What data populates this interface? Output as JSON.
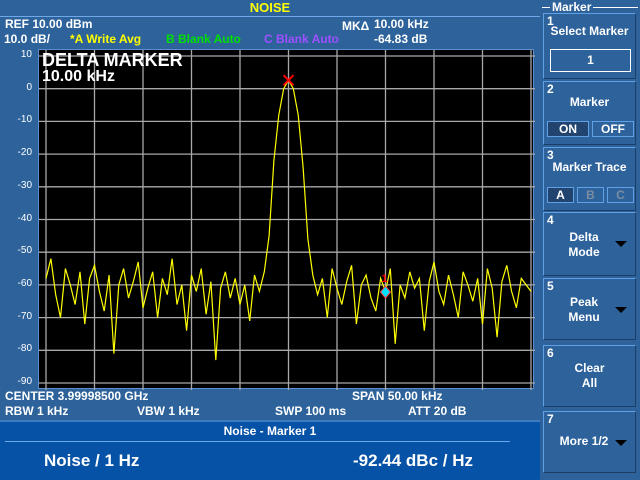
{
  "title": "NOISE",
  "header": {
    "ref": "REF  10.00 dBm",
    "scale": "10.0 dB/",
    "trace_a": "*A Write Avg",
    "trace_b": "B Blank Auto",
    "trace_c": "C Blank Auto",
    "mk_label": "MKΔ",
    "mk_freq": "10.00 kHz",
    "mk_level": "-64.83 dB"
  },
  "colors": {
    "trace_a": "#ffff00",
    "trace_b": "#00e000",
    "trace_c": "#a050ff",
    "marker": "#ff0000",
    "delta_marker": "#00e0ff"
  },
  "overlay": {
    "line1": "DELTA MARKER",
    "line2": "10.00 kHz"
  },
  "footer": {
    "center": "CENTER 3.99998500 GHz",
    "span": "SPAN  50.00 kHz",
    "rbw": "RBW  1 kHz",
    "vbw": "VBW  1 kHz",
    "swp": "SWP  100 ms",
    "att": "ATT  20 dB"
  },
  "result": {
    "title": "Noise - Marker 1",
    "label": "Noise / 1 Hz",
    "value": "-92.44 dBc / Hz"
  },
  "softkeys": {
    "menu": "Marker",
    "k1": {
      "num": "1",
      "label": "Select Marker",
      "value": "1"
    },
    "k2": {
      "num": "2",
      "label": "Marker",
      "on": "ON",
      "off": "OFF",
      "selected": "ON"
    },
    "k3": {
      "num": "3",
      "label": "Marker Trace",
      "a": "A",
      "b": "B",
      "c": "C",
      "selected": "A"
    },
    "k4": {
      "num": "4",
      "line1": "Delta",
      "line2": "Mode"
    },
    "k5": {
      "num": "5",
      "line1": "Peak",
      "line2": "Menu"
    },
    "k6": {
      "num": "6",
      "line1": "Clear",
      "line2": "All"
    },
    "k7": {
      "num": "7",
      "label": "More 1/2"
    }
  },
  "chart_data": {
    "type": "line",
    "x_unit": "kHz offset from center",
    "x_range": [
      -25,
      25
    ],
    "ylim": [
      -90,
      10
    ],
    "yticks": [
      10,
      0,
      -10,
      -20,
      -30,
      -40,
      -50,
      -60,
      -70,
      -80,
      -90
    ],
    "grid": true,
    "series": [
      {
        "name": "A",
        "values": [
          -58,
          -52,
          -63,
          -70,
          -55,
          -60,
          -66,
          -56,
          -72,
          -58,
          -54,
          -62,
          -68,
          -57,
          -81,
          -60,
          -55,
          -64,
          -59,
          -53,
          -67,
          -61,
          -56,
          -70,
          -58,
          -63,
          -52,
          -66,
          -60,
          -74,
          -57,
          -62,
          -55,
          -69,
          -59,
          -83,
          -61,
          -56,
          -64,
          -58,
          -66,
          -60,
          -71,
          -57,
          -62,
          -56,
          -45,
          -22,
          -8,
          0,
          2.6,
          0,
          -8,
          -24,
          -46,
          -57,
          -63,
          -58,
          -70,
          -55,
          -61,
          -66,
          -59,
          -54,
          -72,
          -60,
          -57,
          -64,
          -68,
          -58,
          -62,
          -55,
          -78,
          -60,
          -64,
          -56,
          -61,
          -58,
          -74,
          -59,
          -53,
          -62,
          -66,
          -57,
          -63,
          -70,
          -56,
          -60,
          -65,
          -58,
          -72,
          -55,
          -61,
          -76,
          -59,
          -54,
          -62,
          -67,
          -58,
          -60,
          -62
        ]
      }
    ],
    "markers": [
      {
        "id": "1",
        "x": 0,
        "y": 2.6,
        "type": "reference"
      },
      {
        "id": "1",
        "x": 10,
        "y": -62.2,
        "type": "delta"
      }
    ]
  }
}
